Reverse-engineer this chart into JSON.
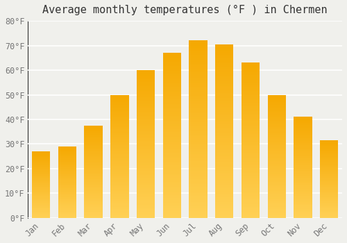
{
  "title": "Average monthly temperatures (°F ) in Chermen",
  "months": [
    "Jan",
    "Feb",
    "Mar",
    "Apr",
    "May",
    "Jun",
    "Jul",
    "Aug",
    "Sep",
    "Oct",
    "Nov",
    "Dec"
  ],
  "values": [
    27,
    29,
    37.5,
    50,
    60,
    67,
    72,
    70.5,
    63,
    50,
    41,
    31.5
  ],
  "bar_color_bottom": "#FFD055",
  "bar_color_top": "#F5A800",
  "ylim": [
    0,
    80
  ],
  "yticks": [
    0,
    10,
    20,
    30,
    40,
    50,
    60,
    70,
    80
  ],
  "background_color": "#F0F0EC",
  "grid_color": "#FFFFFF",
  "title_fontsize": 11,
  "tick_fontsize": 8.5,
  "bar_width": 0.7
}
